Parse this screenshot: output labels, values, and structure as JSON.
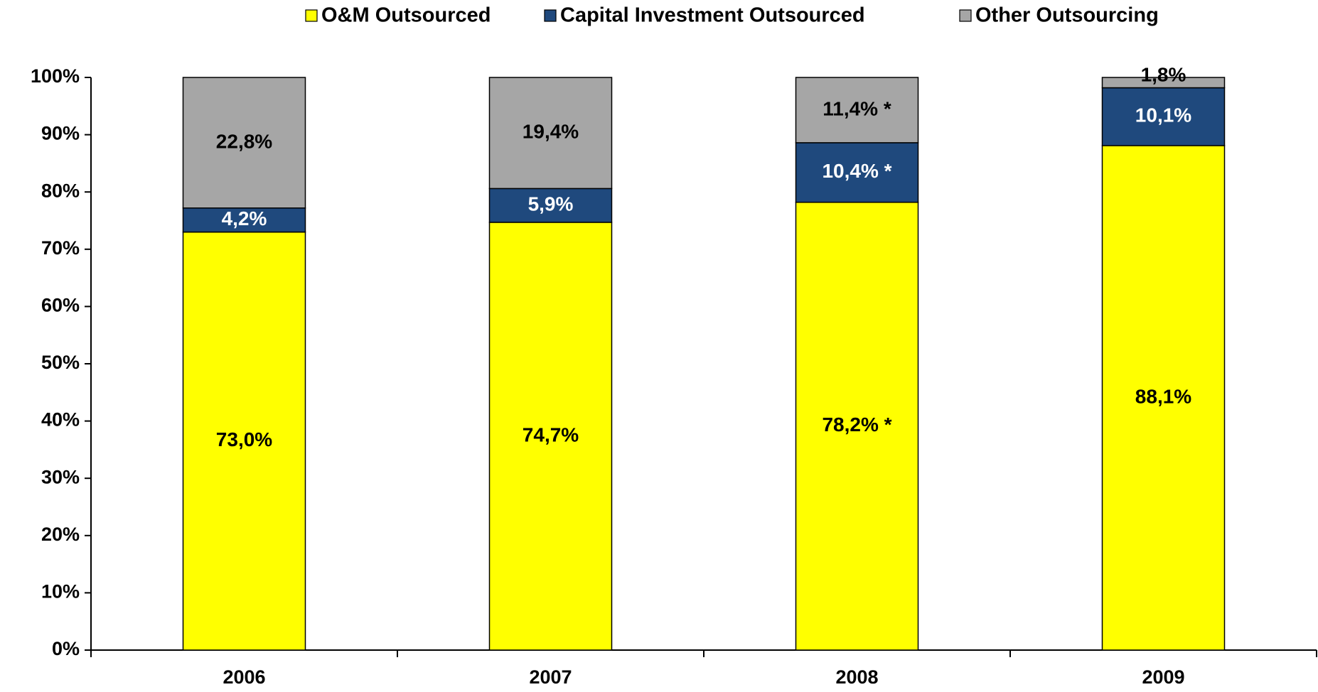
{
  "chart_data": {
    "type": "stacked_bar",
    "categories": [
      "2006",
      "2007",
      "2008",
      "2009"
    ],
    "series": [
      {
        "name": "O&M Outsourced",
        "color": "#ffff00",
        "label_color": "#000000",
        "values": [
          73.0,
          74.7,
          78.2,
          88.1
        ],
        "value_labels": [
          "73,0%",
          "74,7%",
          "78,2% *",
          "88,1%"
        ]
      },
      {
        "name": "Capital Investment Outsourced",
        "color": "#1f497d",
        "label_color": "#ffffff",
        "values": [
          4.2,
          5.9,
          10.4,
          10.1
        ],
        "value_labels": [
          "4,2%",
          "5,9%",
          "10,4% *",
          "10,1%"
        ]
      },
      {
        "name": "Other Outsourcing",
        "color": "#a6a6a6",
        "label_color": "#000000",
        "values": [
          22.8,
          19.4,
          11.4,
          1.8
        ],
        "value_labels": [
          "22,8%",
          "19,4%",
          "11,4% *",
          "1,8%"
        ]
      }
    ],
    "ylim": [
      0,
      100
    ],
    "yticks": [
      {
        "value": 0,
        "label": "0%"
      },
      {
        "value": 10,
        "label": "10%"
      },
      {
        "value": 20,
        "label": "20%"
      },
      {
        "value": 30,
        "label": "30%"
      },
      {
        "value": 40,
        "label": "40%"
      },
      {
        "value": 50,
        "label": "50%"
      },
      {
        "value": 60,
        "label": "60%"
      },
      {
        "value": 70,
        "label": "70%"
      },
      {
        "value": 80,
        "label": "80%"
      },
      {
        "value": 90,
        "label": "90%"
      },
      {
        "value": 100,
        "label": "100%"
      }
    ],
    "grid": false,
    "legend": "top"
  }
}
